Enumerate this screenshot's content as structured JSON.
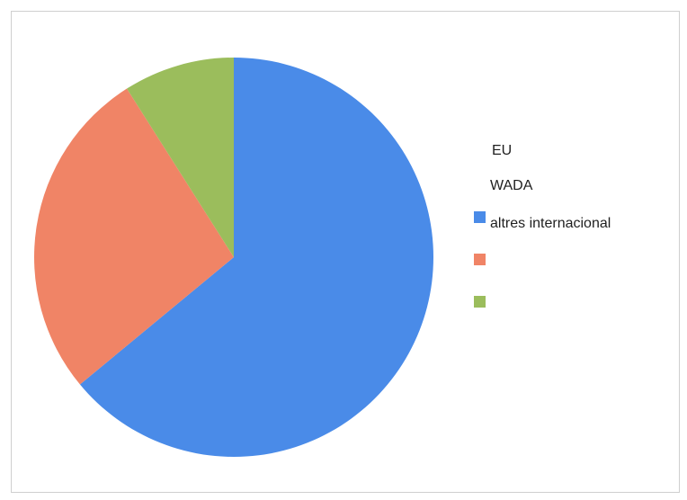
{
  "chart_data": {
    "type": "pie",
    "labels": [
      "altres internacional",
      "",
      ""
    ],
    "values": [
      0.64,
      0.27,
      0.09
    ],
    "colors": [
      "#4a8be8",
      "#f08466",
      "#9bbd5c"
    ],
    "start_angle_deg": 0,
    "direction": "clockwise",
    "legend_placement": "right",
    "legend_text_lines": [
      "EU",
      "WADA"
    ]
  }
}
